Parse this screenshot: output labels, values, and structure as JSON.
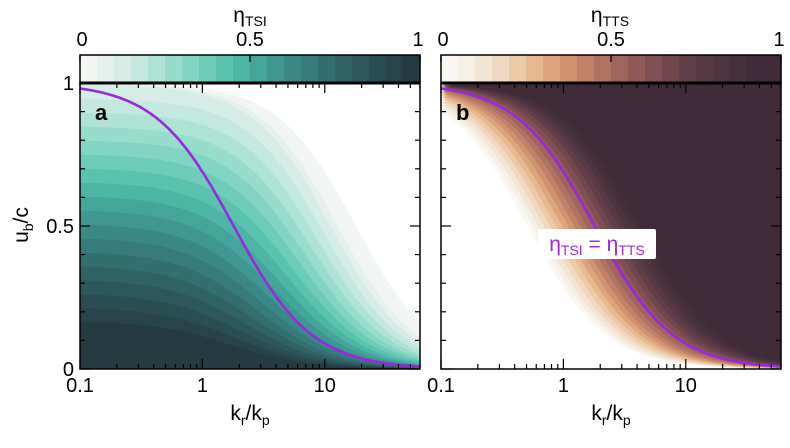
{
  "chart_data": [
    {
      "type": "contour",
      "panel_label": "a",
      "colorbar": {
        "label_base": "η",
        "label_sub": "TSI",
        "ticks": [
          {
            "value": 0,
            "label": "0"
          },
          {
            "value": 0.5,
            "label": "0.5"
          },
          {
            "value": 1,
            "label": "1"
          }
        ],
        "range": [
          0,
          1
        ],
        "colors": [
          "#f1f6f2",
          "#e5f1ec",
          "#d5ede6",
          "#c2e8df",
          "#aee3d6",
          "#98ddcc",
          "#82d5c2",
          "#6dccb8",
          "#5bc2ae",
          "#4db5a4",
          "#44a69b",
          "#3f9791",
          "#3b8987",
          "#377b7c",
          "#336e71",
          "#306266",
          "#2d575c",
          "#2a4d53",
          "#27444a",
          "#243b42"
        ]
      },
      "xlabel_base": "k",
      "xlabel_sub1": "r",
      "xlabel_sub2": "p",
      "ylabel_base": "u",
      "ylabel_sub": "b",
      "ylabel_suffix": "/c",
      "xscale": "log",
      "xlim": [
        0.1,
        60
      ],
      "ylim": [
        0,
        1
      ],
      "xticks": [
        {
          "value": 0.1,
          "label": "0.1"
        },
        {
          "value": 1,
          "label": "1"
        },
        {
          "value": 10,
          "label": "10"
        }
      ],
      "yticks": [
        {
          "value": 0,
          "label": "0"
        },
        {
          "value": 0.5,
          "label": "0.5"
        },
        {
          "value": 1,
          "label": "1"
        }
      ],
      "boundary_curve": {
        "name": "η_TSI = η_TTS",
        "color": "#9b27e0",
        "x_mid": 1.8,
        "log_width": 0.32
      }
    },
    {
      "type": "contour",
      "panel_label": "b",
      "colorbar": {
        "label_base": "η",
        "label_sub": "TTS",
        "ticks": [
          {
            "value": 0,
            "label": "0"
          },
          {
            "value": 0.5,
            "label": "0.5"
          },
          {
            "value": 1,
            "label": "1"
          }
        ],
        "range": [
          0,
          1
        ],
        "colors": [
          "#faf7f2",
          "#f6efe4",
          "#f2e5d3",
          "#efd8bf",
          "#eccaa8",
          "#e6b990",
          "#dda57d",
          "#d0926f",
          "#c18167",
          "#b07262",
          "#a0655d",
          "#8f5a58",
          "#7f5053",
          "#6f474d",
          "#613f48",
          "#573944",
          "#4e3440",
          "#472f3c",
          "#432c39",
          "#412b38"
        ]
      },
      "xlabel_base": "k",
      "xlabel_sub1": "r",
      "xlabel_sub2": "p",
      "xscale": "log",
      "xlim": [
        0.1,
        60
      ],
      "ylim": [
        0,
        1
      ],
      "xticks": [
        {
          "value": 0.1,
          "label": "0.1"
        },
        {
          "value": 1,
          "label": "1"
        },
        {
          "value": 10,
          "label": "10"
        }
      ],
      "boundary_curve": {
        "name": "η_TSI = η_TTS",
        "color": "#9b27e0",
        "x_mid": 1.8,
        "log_width": 0.32
      },
      "annotation": {
        "base": "η",
        "sub1": "TSI",
        "eq": " = ",
        "sub2": "TTS",
        "text": "ηTSI = ηTTS",
        "color": "#9b27e0"
      }
    }
  ]
}
